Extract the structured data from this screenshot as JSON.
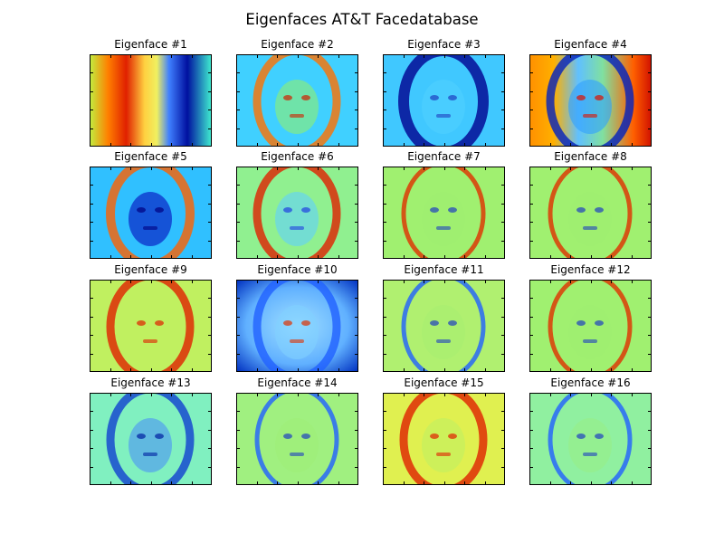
{
  "figure": {
    "title": "Eigenfaces AT&T Facedatabase"
  },
  "chart_data": {
    "type": "heatmap",
    "title": "Eigenfaces AT&T Facedatabase",
    "colormap": "jet",
    "grid": false,
    "layout": "4 rows x 4 columns",
    "panels": [
      {
        "title": "Eigenface #1",
        "background": "#d8f050",
        "scheme": "lr"
      },
      {
        "title": "Eigenface #2",
        "background": "#40d0ff",
        "scheme": "tophead"
      },
      {
        "title": "Eigenface #3",
        "background": "#40c8ff",
        "scheme": "darkhair"
      },
      {
        "title": "Eigenface #4",
        "background": "#80e0a0",
        "scheme": "rightred"
      },
      {
        "title": "Eigenface #5",
        "background": "#30c0ff",
        "scheme": "bluehead"
      },
      {
        "title": "Eigenface #6",
        "background": "#90f090",
        "scheme": "redtop"
      },
      {
        "title": "Eigenface #7",
        "background": "#a0f070",
        "scheme": "mixed"
      },
      {
        "title": "Eigenface #8",
        "background": "#a0f070",
        "scheme": "mixed"
      },
      {
        "title": "Eigenface #9",
        "background": "#c0f060",
        "scheme": "warm"
      },
      {
        "title": "Eigenface #10",
        "background": "#80d0ff",
        "scheme": "bluecorners"
      },
      {
        "title": "Eigenface #11",
        "background": "#b0f070",
        "scheme": "faint"
      },
      {
        "title": "Eigenface #12",
        "background": "#a0f070",
        "scheme": "mixed"
      },
      {
        "title": "Eigenface #13",
        "background": "#80f0c0",
        "scheme": "bluefaint"
      },
      {
        "title": "Eigenface #14",
        "background": "#a0f080",
        "scheme": "faint"
      },
      {
        "title": "Eigenface #15",
        "background": "#e0f050",
        "scheme": "warm"
      },
      {
        "title": "Eigenface #16",
        "background": "#90f0a0",
        "scheme": "faint"
      }
    ]
  }
}
